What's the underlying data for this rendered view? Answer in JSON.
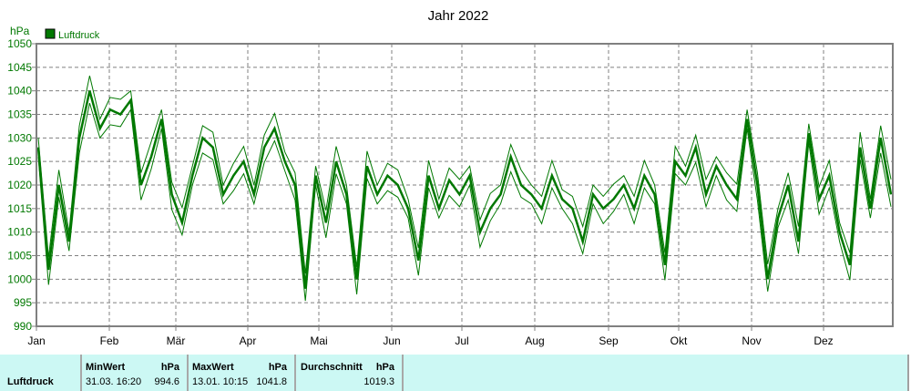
{
  "chart_data": {
    "type": "line",
    "title": "Jahr 2022",
    "ylabel": "hPa",
    "xlabel": "",
    "ylim": [
      990,
      1050
    ],
    "yticks": [
      990,
      995,
      1000,
      1005,
      1010,
      1015,
      1020,
      1025,
      1030,
      1035,
      1040,
      1045,
      1050
    ],
    "xticks": [
      "Jan",
      "Feb",
      "Mär",
      "Apr",
      "Mai",
      "Jun",
      "Jul",
      "Aug",
      "Sep",
      "Okt",
      "Nov",
      "Dez"
    ],
    "grid": true,
    "legend_position": "top-left",
    "series": [
      {
        "name": "Luftdruck",
        "color": "#007800",
        "note": "approx. daily-ish mean, sampled every 5 days; min/max envelope drawn ±band",
        "values": [
          1028,
          1002,
          1020,
          1008,
          1030,
          1040,
          1032,
          1036,
          1035,
          1038,
          1020,
          1026,
          1034,
          1018,
          1012,
          1022,
          1030,
          1028,
          1018,
          1022,
          1025,
          1018,
          1028,
          1032,
          1025,
          1020,
          998,
          1022,
          1012,
          1025,
          1018,
          1000,
          1024,
          1018,
          1022,
          1020,
          1015,
          1004,
          1022,
          1015,
          1021,
          1018,
          1022,
          1010,
          1015,
          1018,
          1026,
          1020,
          1018,
          1015,
          1022,
          1017,
          1015,
          1008,
          1018,
          1015,
          1017,
          1020,
          1015,
          1022,
          1018,
          1003,
          1025,
          1022,
          1028,
          1018,
          1024,
          1020,
          1017,
          1034,
          1020,
          1000,
          1013,
          1020,
          1008,
          1031,
          1017,
          1022,
          1010,
          1003,
          1028,
          1015,
          1030,
          1018
        ],
        "band": 2
      }
    ]
  },
  "chart": {
    "title": "Jahr 2022",
    "y_unit": "hPa",
    "legend_label": "Luftdruck",
    "legend_color": "#007800",
    "ytick_labels": [
      "1050",
      "1045",
      "1040",
      "1035",
      "1030",
      "1025",
      "1020",
      "1015",
      "1010",
      "1005",
      "1000",
      "995",
      "990"
    ],
    "month_labels": [
      "Jan",
      "Feb",
      "Mär",
      "Apr",
      "Mai",
      "Jun",
      "Jul",
      "Aug",
      "Sep",
      "Okt",
      "Nov",
      "Dez"
    ]
  },
  "stats": {
    "row_label": "Luftdruck",
    "min": {
      "header": "MinWert",
      "unit": "hPa",
      "datetime": "31.03.  16:20",
      "value": "994.6"
    },
    "max": {
      "header": "MaxWert",
      "unit": "hPa",
      "datetime": "13.01.  10:15",
      "value": "1041.8"
    },
    "avg": {
      "header": "Durchschnitt",
      "unit": "hPa",
      "value": "1019.3"
    }
  }
}
